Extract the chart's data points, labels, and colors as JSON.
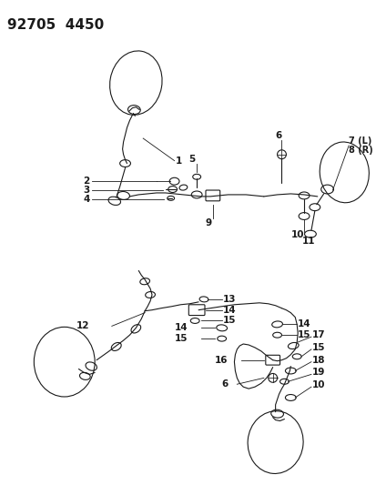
{
  "title": "92705  4450",
  "bg_color": "#ffffff",
  "line_color": "#1a1a1a",
  "title_fontsize": 11,
  "label_fontsize": 7.5,
  "figsize": [
    4.14,
    5.33
  ],
  "dpi": 100
}
